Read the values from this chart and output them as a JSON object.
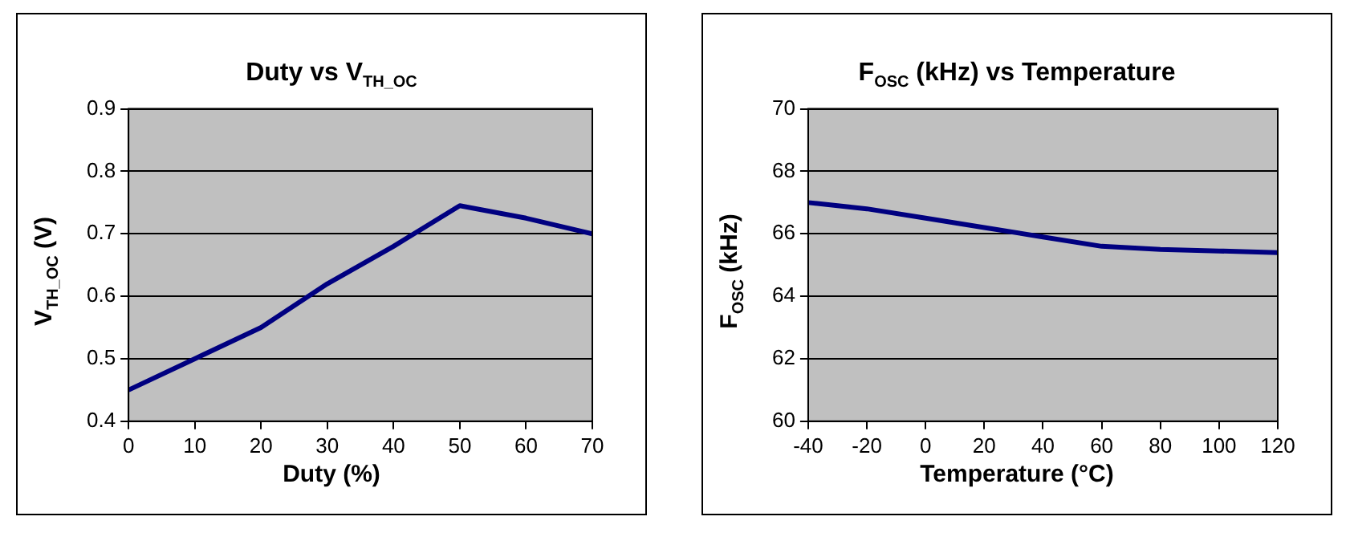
{
  "chart_data": [
    {
      "type": "line",
      "title": "Duty  vs V$_{TH_OC}$",
      "xlabel": "Duty (%)",
      "ylabel": "V$_{TH_OC}$ (V)",
      "x": [
        0,
        10,
        20,
        30,
        40,
        50,
        60,
        70
      ],
      "xlim": [
        0,
        70
      ],
      "xticks": [
        0,
        10,
        20,
        30,
        40,
        50,
        60,
        70
      ],
      "ylim": [
        0.4,
        0.9
      ],
      "yticks": [
        0.4,
        0.5,
        0.6,
        0.7,
        0.8,
        0.9
      ],
      "grid": "y",
      "series": [
        {
          "color": "#000080",
          "values": [
            0.45,
            0.5,
            0.55,
            0.62,
            0.68,
            0.745,
            0.725,
            0.7
          ]
        }
      ]
    },
    {
      "type": "line",
      "title": "F$_{OSC}$ (kHz)  vs Temperature",
      "xlabel": "Temperature (°C)",
      "ylabel": "F$_{OSC}$ (kHz)",
      "x": [
        -40,
        -20,
        0,
        20,
        40,
        60,
        80,
        100,
        120
      ],
      "xlim": [
        -40,
        120
      ],
      "xticks": [
        -40,
        -20,
        0,
        20,
        40,
        60,
        80,
        100,
        120
      ],
      "ylim": [
        60,
        70
      ],
      "yticks": [
        60,
        62,
        64,
        66,
        68,
        70
      ],
      "grid": "y",
      "series": [
        {
          "color": "#000080",
          "values": [
            67.0,
            66.8,
            66.5,
            66.2,
            65.9,
            65.6,
            65.5,
            65.45,
            65.4
          ]
        }
      ]
    }
  ]
}
